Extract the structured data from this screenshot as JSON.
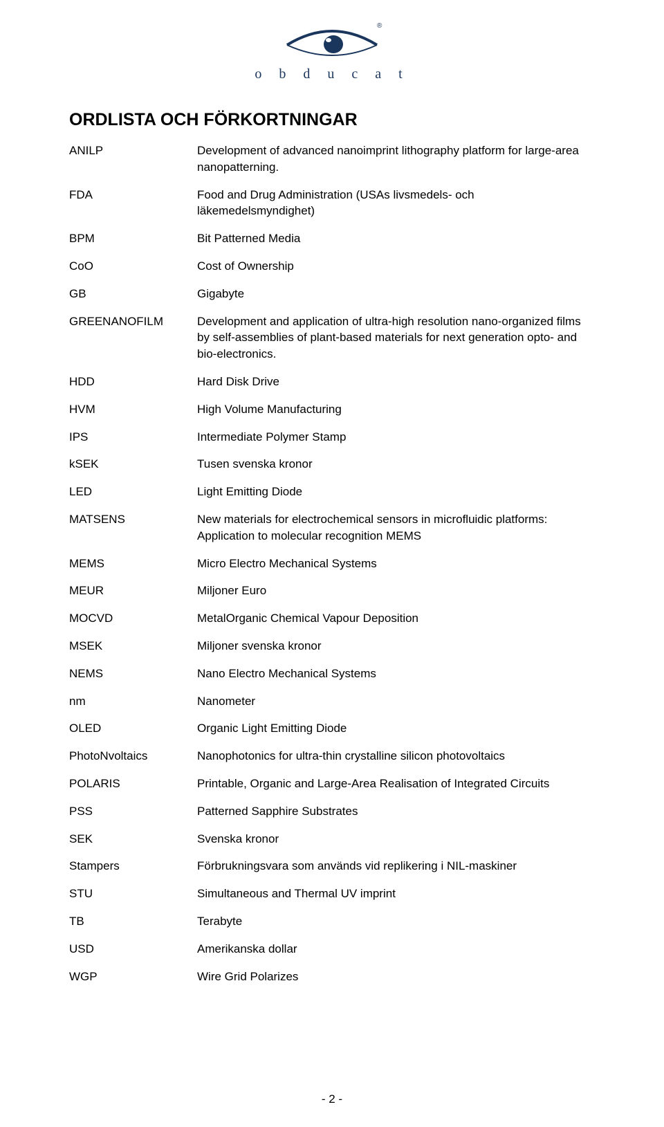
{
  "logo": {
    "text": "o b d u c a t",
    "brand_color": "#1b365d"
  },
  "title": "ORDLISTA OCH FÖRKORTNINGAR",
  "glossary": [
    {
      "term": "ANILP",
      "def": "Development of advanced nanoimprint lithography platform for large-area nanopatterning."
    },
    {
      "term": "FDA",
      "def": "Food and Drug Administration (USAs livsmedels- och läkemedelsmyndighet)"
    },
    {
      "term": "BPM",
      "def": "Bit Patterned Media"
    },
    {
      "term": "CoO",
      "def": "Cost of Ownership"
    },
    {
      "term": "GB",
      "def": "Gigabyte"
    },
    {
      "term": "GREENANOFILM",
      "def": "Development and application of ultra-high resolution nano-organized films by self-assemblies of plant-based materials for next generation opto- and bio-electronics."
    },
    {
      "term": "HDD",
      "def": "Hard Disk Drive"
    },
    {
      "term": "HVM",
      "def": "High Volume Manufacturing"
    },
    {
      "term": "IPS",
      "def": "Intermediate Polymer Stamp"
    },
    {
      "term": "kSEK",
      "def": "Tusen svenska kronor"
    },
    {
      "term": "LED",
      "def": "Light Emitting Diode"
    },
    {
      "term": "MATSENS",
      "def": "New materials for electrochemical sensors in microfluidic platforms: Application to molecular recognition MEMS"
    },
    {
      "term": "MEMS",
      "def": "Micro Electro Mechanical Systems"
    },
    {
      "term": "MEUR",
      "def": "Miljoner Euro"
    },
    {
      "term": "MOCVD",
      "def": "MetalOrganic Chemical Vapour Deposition"
    },
    {
      "term": "MSEK",
      "def": "Miljoner svenska kronor"
    },
    {
      "term": "NEMS",
      "def": "Nano Electro Mechanical Systems"
    },
    {
      "term": "nm",
      "def": "Nanometer"
    },
    {
      "term": "OLED",
      "def": "Organic Light Emitting Diode"
    },
    {
      "term": "PhotoNvoltaics",
      "def": "Nanophotonics for ultra-thin crystalline silicon photovoltaics"
    },
    {
      "term": "POLARIS",
      "def": "Printable, Organic and Large-Area Realisation of Integrated Circuits"
    },
    {
      "term": "PSS",
      "def": "Patterned Sapphire Substrates"
    },
    {
      "term": "SEK",
      "def": "Svenska kronor"
    },
    {
      "term": "Stampers",
      "def": "Förbrukningsvara som används vid replikering i NIL-maskiner"
    },
    {
      "term": "STU",
      "def": "Simultaneous and Thermal UV imprint"
    },
    {
      "term": "TB",
      "def": "Terabyte"
    },
    {
      "term": "USD",
      "def": "Amerikanska dollar"
    },
    {
      "term": "WGP",
      "def": "Wire Grid Polarizes"
    }
  ],
  "page_number": "- 2 -"
}
